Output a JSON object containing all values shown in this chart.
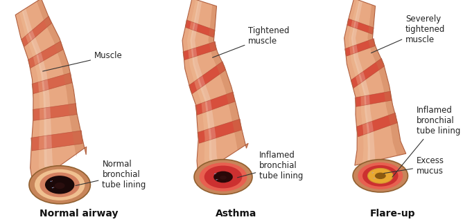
{
  "background_color": "#ffffff",
  "title_fontsize": 10,
  "label_fontsize": 8.5,
  "panels": [
    {
      "title": "Normal airway",
      "inflamed": false,
      "mucus": false,
      "tube_skin_color": "#E8A882",
      "tube_muscle_color": "#D45A40",
      "tube_highlight_color": "#F5C8A0",
      "tube_shadow_color": "#C87850",
      "outer_ring_color": "#C8855A",
      "wall_color": "#F0C090",
      "lining_color": "#D48060",
      "inner_wall_color": "#E8C4A0",
      "airway_color": "#1a0808",
      "airway_inner_color": "#2a1010"
    },
    {
      "title": "Asthma",
      "inflamed": true,
      "mucus": false,
      "tube_skin_color": "#E8A882",
      "tube_muscle_color": "#D44030",
      "tube_highlight_color": "#F5C8A0",
      "tube_shadow_color": "#C87850",
      "outer_ring_color": "#C8855A",
      "wall_color": "#E86050",
      "lining_color": "#CC3030",
      "inner_wall_color": "#E87060",
      "airway_color": "#2a0808",
      "airway_inner_color": "#3a1010"
    },
    {
      "title": "Flare-up",
      "inflamed": true,
      "mucus": true,
      "tube_skin_color": "#E8A882",
      "tube_muscle_color": "#D44030",
      "tube_highlight_color": "#F5C8A0",
      "tube_shadow_color": "#C87850",
      "outer_ring_color": "#C8855A",
      "wall_color": "#E86050",
      "lining_color": "#CC3030",
      "inner_wall_color": "#E87060",
      "mucus_color": "#E8A830",
      "mucus_outer_color": "#D49030",
      "airway_color": "#8B5A10",
      "airway_inner_color": "#6B4008"
    }
  ]
}
